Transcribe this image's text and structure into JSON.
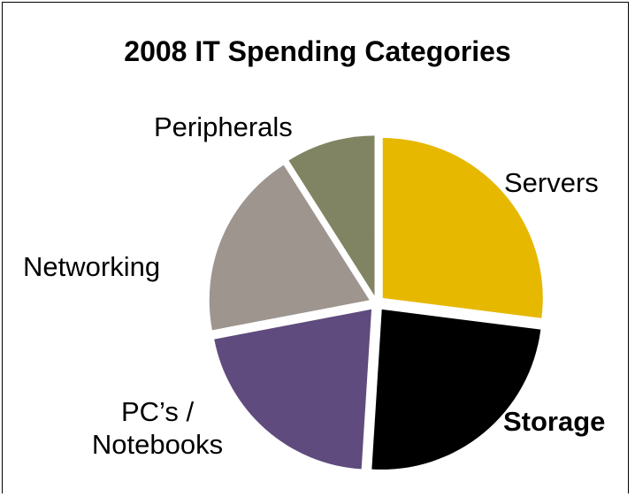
{
  "chart_data": {
    "type": "pie",
    "title": "2008 IT Spending Categories",
    "slices": [
      {
        "label": "Servers",
        "value": 27,
        "color": "#E6B800",
        "bold": false
      },
      {
        "label": "Storage",
        "value": 24,
        "color": "#000000",
        "bold": true
      },
      {
        "label": "PC’s / Notebooks",
        "label_lines": [
          "PC’s /",
          "Notebooks"
        ],
        "value": 21,
        "color": "#5F4B7E",
        "bold": false
      },
      {
        "label": "Networking",
        "value": 19,
        "color": "#9D958E",
        "bold": false
      },
      {
        "label": "Peripherals",
        "value": 9,
        "color": "#808462",
        "bold": false
      }
    ],
    "start_angle_deg": 0,
    "direction": "clockwise",
    "exploded": true
  }
}
